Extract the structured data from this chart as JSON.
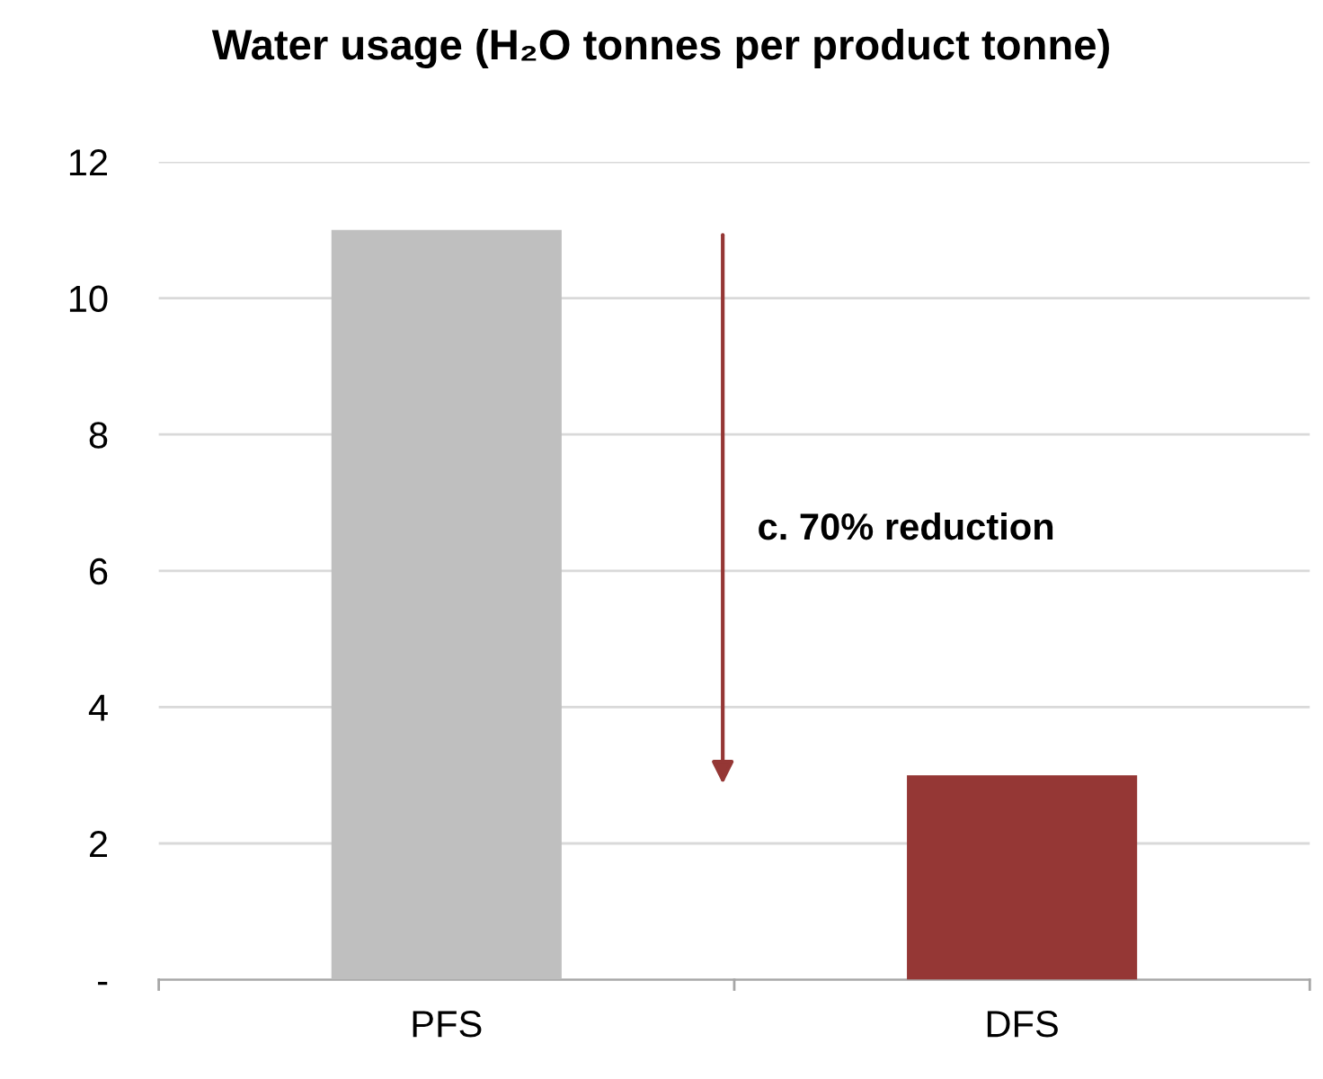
{
  "chart_data": {
    "type": "bar",
    "title": "Water usage (H₂O tonnes per product tonne)",
    "categories": [
      "PFS",
      "DFS"
    ],
    "values": [
      11,
      3
    ],
    "colors": [
      "#bfbfbf",
      "#953735"
    ],
    "ylim": [
      0,
      12
    ],
    "yticks": [
      {
        "value": 0,
        "label": "-"
      },
      2,
      4,
      6,
      8,
      10,
      12
    ],
    "grid": "y",
    "annotations": [
      "c. 70% reduction"
    ]
  }
}
